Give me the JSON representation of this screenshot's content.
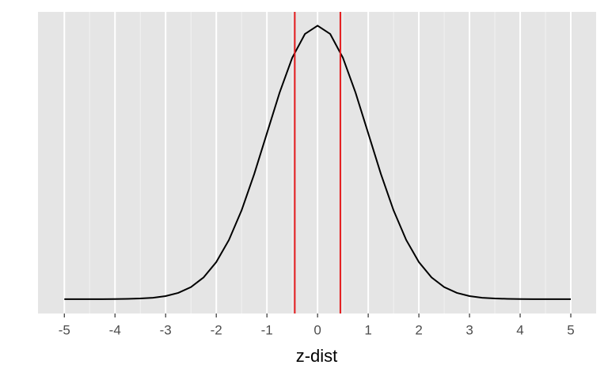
{
  "chart_data": {
    "type": "line",
    "x_label": "z-dist",
    "x": [
      -5,
      -4.75,
      -4.5,
      -4.25,
      -4,
      -3.75,
      -3.5,
      -3.25,
      -3,
      -2.75,
      -2.5,
      -2.25,
      -2,
      -1.75,
      -1.5,
      -1.25,
      -1,
      -0.75,
      -0.5,
      -0.25,
      0,
      0.25,
      0.5,
      0.75,
      1,
      1.25,
      1.5,
      1.75,
      2,
      2.25,
      2.5,
      2.75,
      3,
      3.25,
      3.5,
      3.75,
      4,
      4.25,
      4.5,
      4.75,
      5
    ],
    "series": [
      {
        "color": "#000000",
        "values": [
          0.0,
          0.0,
          0.0,
          0.0,
          0.0001,
          0.0004,
          0.0009,
          0.002,
          0.0044,
          0.0091,
          0.0175,
          0.0317,
          0.054,
          0.0863,
          0.1295,
          0.1826,
          0.242,
          0.3011,
          0.3521,
          0.3867,
          0.3989,
          0.3867,
          0.3521,
          0.3011,
          0.242,
          0.1826,
          0.1295,
          0.0863,
          0.054,
          0.0317,
          0.0175,
          0.0091,
          0.0044,
          0.002,
          0.0009,
          0.0004,
          0.0001,
          0.0,
          0.0,
          0.0,
          0.0
        ]
      }
    ],
    "vlines": {
      "color": "#e41a1c",
      "values": [
        -0.45,
        0.45
      ]
    },
    "xlim": [
      -5.52,
      5.5
    ],
    "ylim": [
      -0.021,
      0.419
    ],
    "xticks": [
      -5,
      -4,
      -3,
      -2,
      -1,
      0,
      1,
      2,
      3,
      4,
      5
    ],
    "xminor": [
      -4.5,
      -3.5,
      -2.5,
      -1.5,
      -0.5,
      0.5,
      1.5,
      2.5,
      3.5,
      4.5
    ],
    "grid": true
  }
}
